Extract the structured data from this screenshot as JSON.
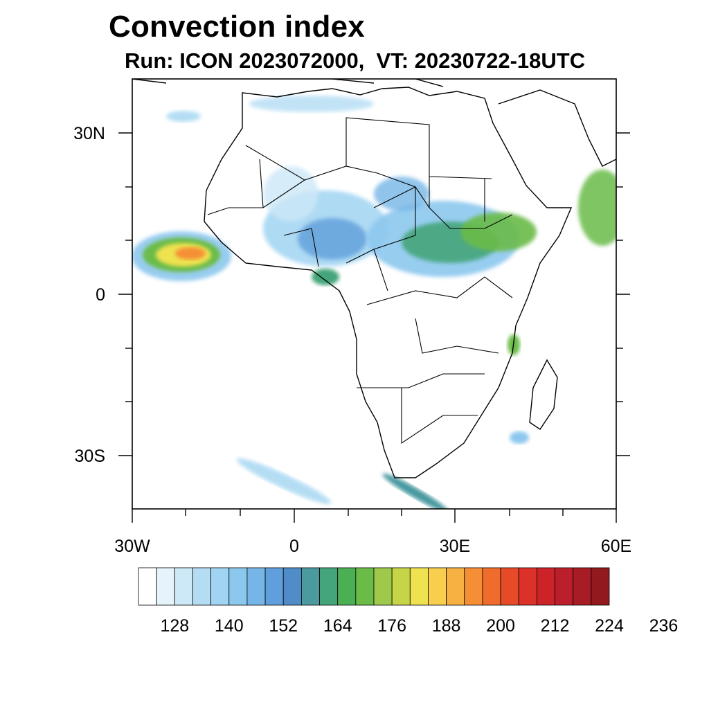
{
  "title": "Convection index",
  "subtitle": "Run: ICON 2023072000,  VT: 20230722-18UTC",
  "map": {
    "region": "Africa",
    "lon_range": [
      -30,
      60
    ],
    "lat_range": [
      -40,
      40
    ],
    "lat_labels": [
      "30N",
      "0",
      "30S"
    ],
    "lon_labels": [
      "30W",
      "0",
      "30E",
      "60E"
    ]
  },
  "colorbar": {
    "labels": [
      "128",
      "140",
      "152",
      "164",
      "176",
      "188",
      "200",
      "212",
      "224",
      "236"
    ],
    "colors": [
      "#ffffff",
      "#e6f3fb",
      "#cde8f7",
      "#b4ddf4",
      "#a0d4f2",
      "#8cc8ee",
      "#76b6e6",
      "#609fdb",
      "#4f8cc8",
      "#4a9aa0",
      "#45a57a",
      "#4bb054",
      "#6abb48",
      "#9ec94a",
      "#c6d448",
      "#eee250",
      "#f8ce4e",
      "#f7b042",
      "#f58f36",
      "#ef6c2c",
      "#e64a29",
      "#db3128",
      "#cc2329",
      "#bb1f2c",
      "#a81c25",
      "#92191d"
    ]
  }
}
